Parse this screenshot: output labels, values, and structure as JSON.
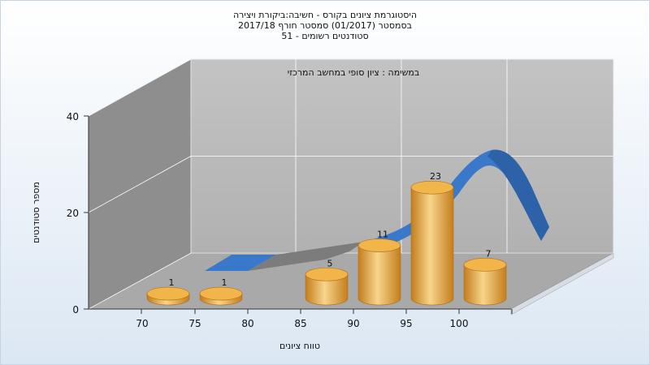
{
  "chart_data": {
    "type": "bar",
    "title_lines": [
      "היסטוגרמת ציונים בקורס - חשיבה:ביקורת ויצירה",
      "בסמסטר  (01/2017)  סמסטר חורף  2017/18",
      "סטודנטים רשומים - 51"
    ],
    "subtitle": "במשימה : ציון סופי במחשב המרכזי",
    "xlabel": "טווח ציונים",
    "ylabel": "מספר סטודנטים",
    "categories": [
      "70",
      "75",
      "80",
      "85",
      "90",
      "95",
      "100"
    ],
    "values": [
      1,
      1,
      null,
      5,
      11,
      23,
      7
    ],
    "data_labels": [
      "1",
      "1",
      "",
      "5",
      "11",
      "23",
      "7"
    ],
    "y_ticks": [
      "0",
      "20",
      "40"
    ],
    "ylim": [
      0,
      40
    ],
    "curve": {
      "type": "area",
      "colors": {
        "front": "#3a78c9",
        "dark": "#2e62a8",
        "gray": "#7c7c7c"
      }
    },
    "colors": {
      "bar_light": "#f7d58c",
      "bar_mid": "#e8a93e",
      "bar_dark": "#c47d1b",
      "top_fill": "#f2b54a",
      "back_wall": "#b8b8b8",
      "left_wall": "#8e8e8e",
      "floor": "#a9a9a9"
    },
    "grid": true
  }
}
